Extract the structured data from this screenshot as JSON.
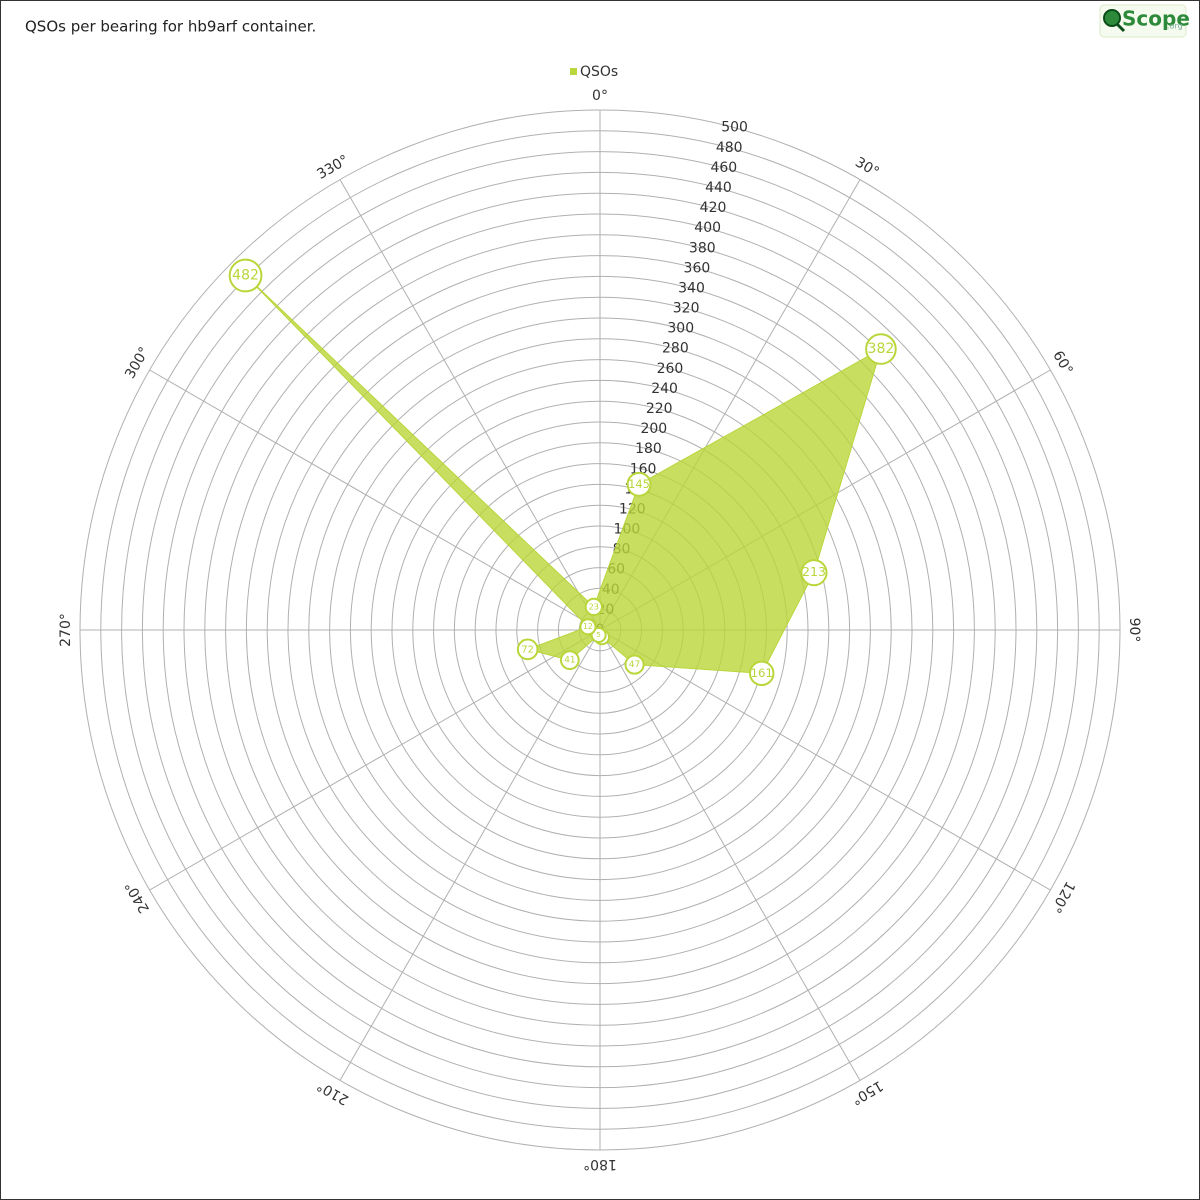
{
  "chart_data": {
    "type": "radar",
    "title": "QSOs per bearing for hb9arf container.",
    "logo": {
      "text": "Scope",
      "suffix": ".org"
    },
    "x": [
      15,
      45,
      75,
      105,
      135,
      165,
      195,
      225,
      255,
      285,
      315,
      345
    ],
    "series": [
      {
        "name": "QSOs",
        "color": "#b9d63a",
        "values": [
          145,
          382,
          213,
          161,
          47,
          7,
          5,
          41,
          72,
          12,
          482,
          23
        ]
      }
    ],
    "xlim": [
      0,
      360
    ],
    "xticks": [
      {
        "value": 0,
        "label": "0°"
      },
      {
        "value": 30,
        "label": "30°"
      },
      {
        "value": 60,
        "label": "60°"
      },
      {
        "value": 90,
        "label": "90°"
      },
      {
        "value": 120,
        "label": "120°"
      },
      {
        "value": 150,
        "label": "150°"
      },
      {
        "value": 180,
        "label": "180°"
      },
      {
        "value": 210,
        "label": "210°"
      },
      {
        "value": 240,
        "label": "240°"
      },
      {
        "value": 270,
        "label": "270°"
      },
      {
        "value": 300,
        "label": "300°"
      },
      {
        "value": 330,
        "label": "330°"
      }
    ],
    "ylim": [
      0,
      500
    ],
    "yticks": [
      0,
      20,
      40,
      60,
      80,
      100,
      120,
      140,
      160,
      180,
      200,
      220,
      240,
      260,
      280,
      300,
      320,
      340,
      360,
      380,
      400,
      420,
      440,
      460,
      480,
      500
    ],
    "grid": true,
    "legend": "top"
  }
}
